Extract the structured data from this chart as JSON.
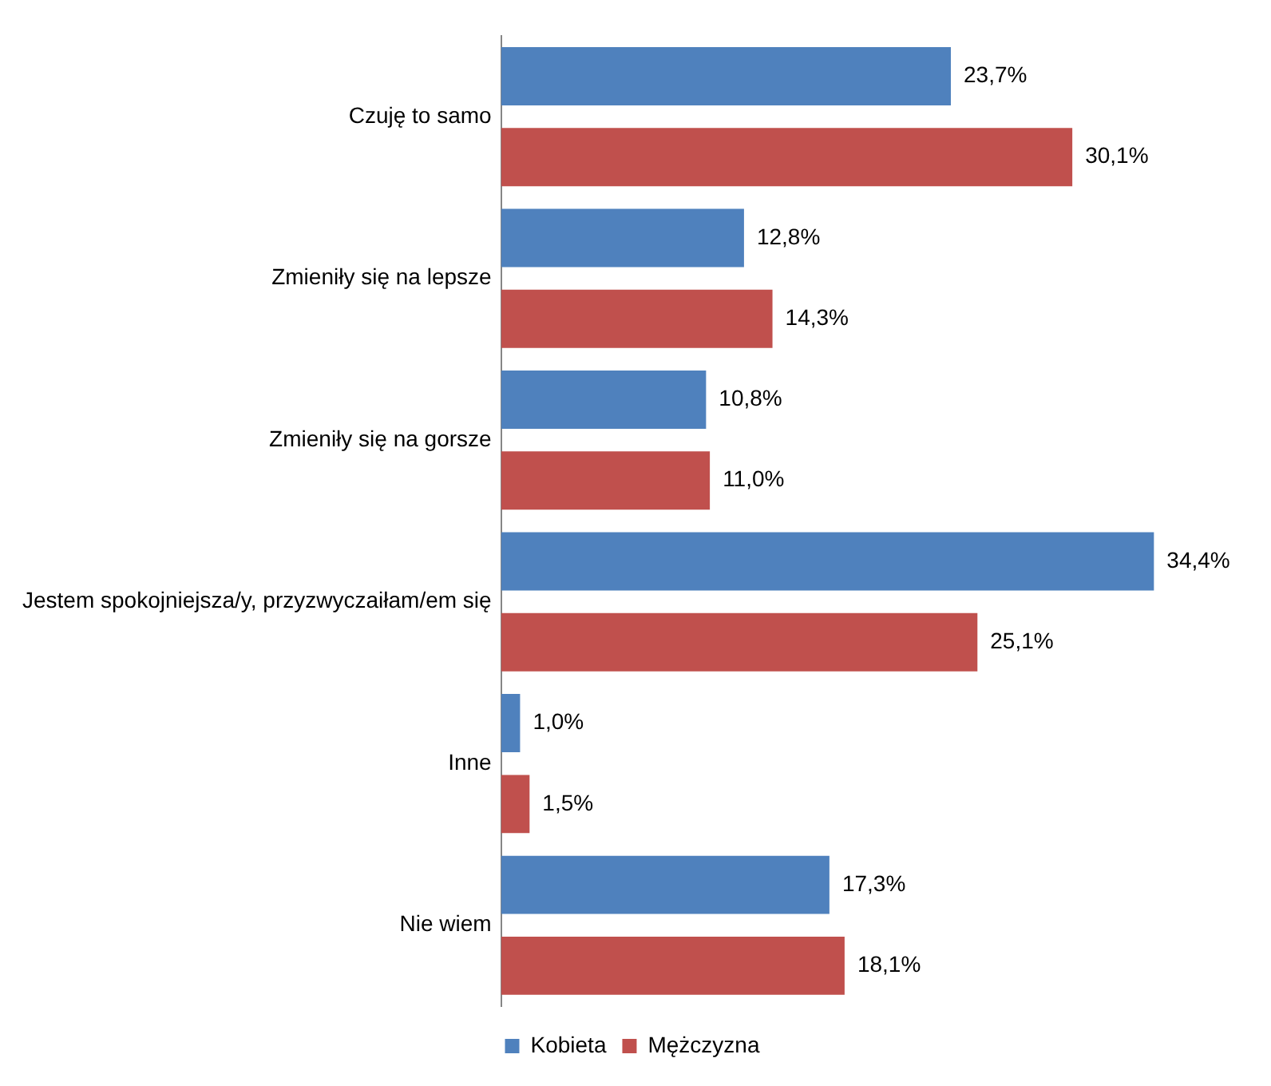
{
  "chart_data": {
    "type": "bar",
    "orientation": "horizontal",
    "categories": [
      "Czuję to samo",
      "Zmieniły się na lepsze",
      "Zmieniły się na gorsze",
      "Jestem spokojniejsza/y, przyzwyczaiłam/em się",
      "Inne",
      "Nie wiem"
    ],
    "series": [
      {
        "name": "Kobieta",
        "color": "#4f81bd",
        "values": [
          23.7,
          12.8,
          10.8,
          34.4,
          1.0,
          17.3
        ],
        "value_labels": [
          "23,7%",
          "12,8%",
          "10,8%",
          "34,4%",
          "1,0%",
          "17,3%"
        ]
      },
      {
        "name": "Mężczyzna",
        "color": "#c0504d",
        "values": [
          30.1,
          14.3,
          11.0,
          25.1,
          1.5,
          18.1
        ],
        "value_labels": [
          "30,1%",
          "14,3%",
          "11,0%",
          "25,1%",
          "1,5%",
          "18,1%"
        ]
      }
    ],
    "grid": false,
    "legend": "bottom"
  }
}
